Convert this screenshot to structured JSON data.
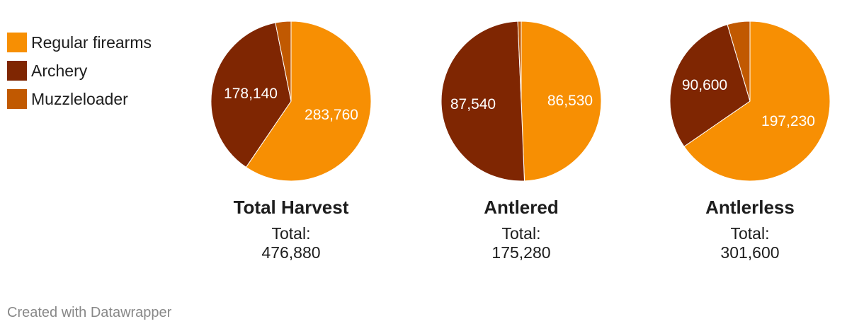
{
  "legend": {
    "items": [
      {
        "label": "Regular firearms",
        "color": "#f78f03"
      },
      {
        "label": "Archery",
        "color": "#7f2602"
      },
      {
        "label": "Muzzleloader",
        "color": "#c15901"
      }
    ]
  },
  "chart_data": [
    {
      "type": "pie",
      "title": "Total Harvest",
      "subtitle_label": "Total:",
      "subtitle_value": "476,880",
      "slices": [
        {
          "name": "Regular firearms",
          "value": 283760,
          "label": "283,760",
          "color": "#f78f03"
        },
        {
          "name": "Archery",
          "value": 178140,
          "label": "178,140",
          "color": "#7f2602"
        },
        {
          "name": "Muzzleloader",
          "value": 14980,
          "label": "",
          "color": "#c15901"
        }
      ]
    },
    {
      "type": "pie",
      "title": "Antlered",
      "subtitle_label": "Total:",
      "subtitle_value": "175,280",
      "slices": [
        {
          "name": "Regular firearms",
          "value": 86530,
          "label": "86,530",
          "color": "#f78f03"
        },
        {
          "name": "Archery",
          "value": 87540,
          "label": "87,540",
          "color": "#7f2602"
        },
        {
          "name": "Muzzleloader",
          "value": 1210,
          "label": "",
          "color": "#c15901"
        }
      ]
    },
    {
      "type": "pie",
      "title": "Antlerless",
      "subtitle_label": "Total:",
      "subtitle_value": "301,600",
      "slices": [
        {
          "name": "Regular firearms",
          "value": 197230,
          "label": "197,230",
          "color": "#f78f03"
        },
        {
          "name": "Archery",
          "value": 90600,
          "label": "90,600",
          "color": "#7f2602"
        },
        {
          "name": "Muzzleloader",
          "value": 13770,
          "label": "",
          "color": "#c15901"
        }
      ]
    }
  ],
  "footer": {
    "credit": "Created with Datawrapper"
  }
}
